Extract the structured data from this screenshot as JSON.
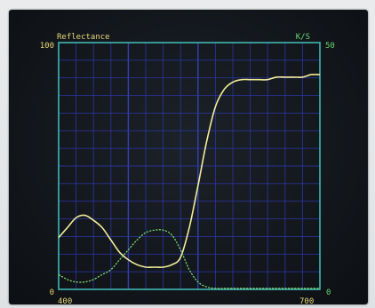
{
  "colors": {
    "frame": "#3fb7b4",
    "grid": "#2c36a8",
    "grid_major": "#3a48c8",
    "reflectance_curve": "#f2ec9a",
    "ks_curve": "#7fe070",
    "left_label": "#e8d878",
    "right_label": "#66d870"
  },
  "chart_data": {
    "type": "line",
    "title": "",
    "xlabel": "",
    "x_tick_labels": [
      "400",
      "700"
    ],
    "xlim": [
      400,
      700
    ],
    "left_axis": {
      "label": "Reflectance",
      "ylim": [
        0,
        100
      ],
      "tick_labels": [
        "100",
        "0"
      ]
    },
    "right_axis": {
      "label": "K/S",
      "ylim": [
        0,
        50
      ],
      "tick_labels": [
        "50",
        "0"
      ]
    },
    "grid": true,
    "series": [
      {
        "name": "",
        "axis": "left",
        "x": [
          400,
          410,
          420,
          430,
          440,
          450,
          460,
          470,
          480,
          490,
          500,
          510,
          520,
          530,
          540,
          550,
          560,
          570,
          580,
          590,
          600,
          610,
          620,
          630,
          640,
          650,
          660,
          670,
          680,
          690,
          700
        ],
        "y": [
          21,
          25,
          29,
          30,
          28,
          25,
          20,
          15,
          12,
          10,
          9,
          9,
          9,
          10,
          13,
          25,
          42,
          60,
          74,
          81,
          84,
          85,
          85,
          85,
          85,
          86,
          86,
          86,
          86,
          87,
          87
        ]
      },
      {
        "name": "",
        "axis": "right",
        "x": [
          400,
          410,
          420,
          430,
          440,
          450,
          460,
          470,
          480,
          490,
          500,
          510,
          520,
          530,
          540,
          550,
          560,
          570,
          580,
          590,
          600,
          610,
          620,
          630,
          640,
          650,
          660,
          670,
          680,
          690,
          700
        ],
        "y": [
          3,
          2,
          1.5,
          1.5,
          2,
          3,
          4,
          6,
          8,
          10,
          11.5,
          12,
          12,
          11,
          8,
          4,
          1.5,
          0.5,
          0.2,
          0.2,
          0.2,
          0.2,
          0.2,
          0.2,
          0.2,
          0.2,
          0.2,
          0.2,
          0.2,
          0.2,
          0.2
        ]
      }
    ]
  }
}
